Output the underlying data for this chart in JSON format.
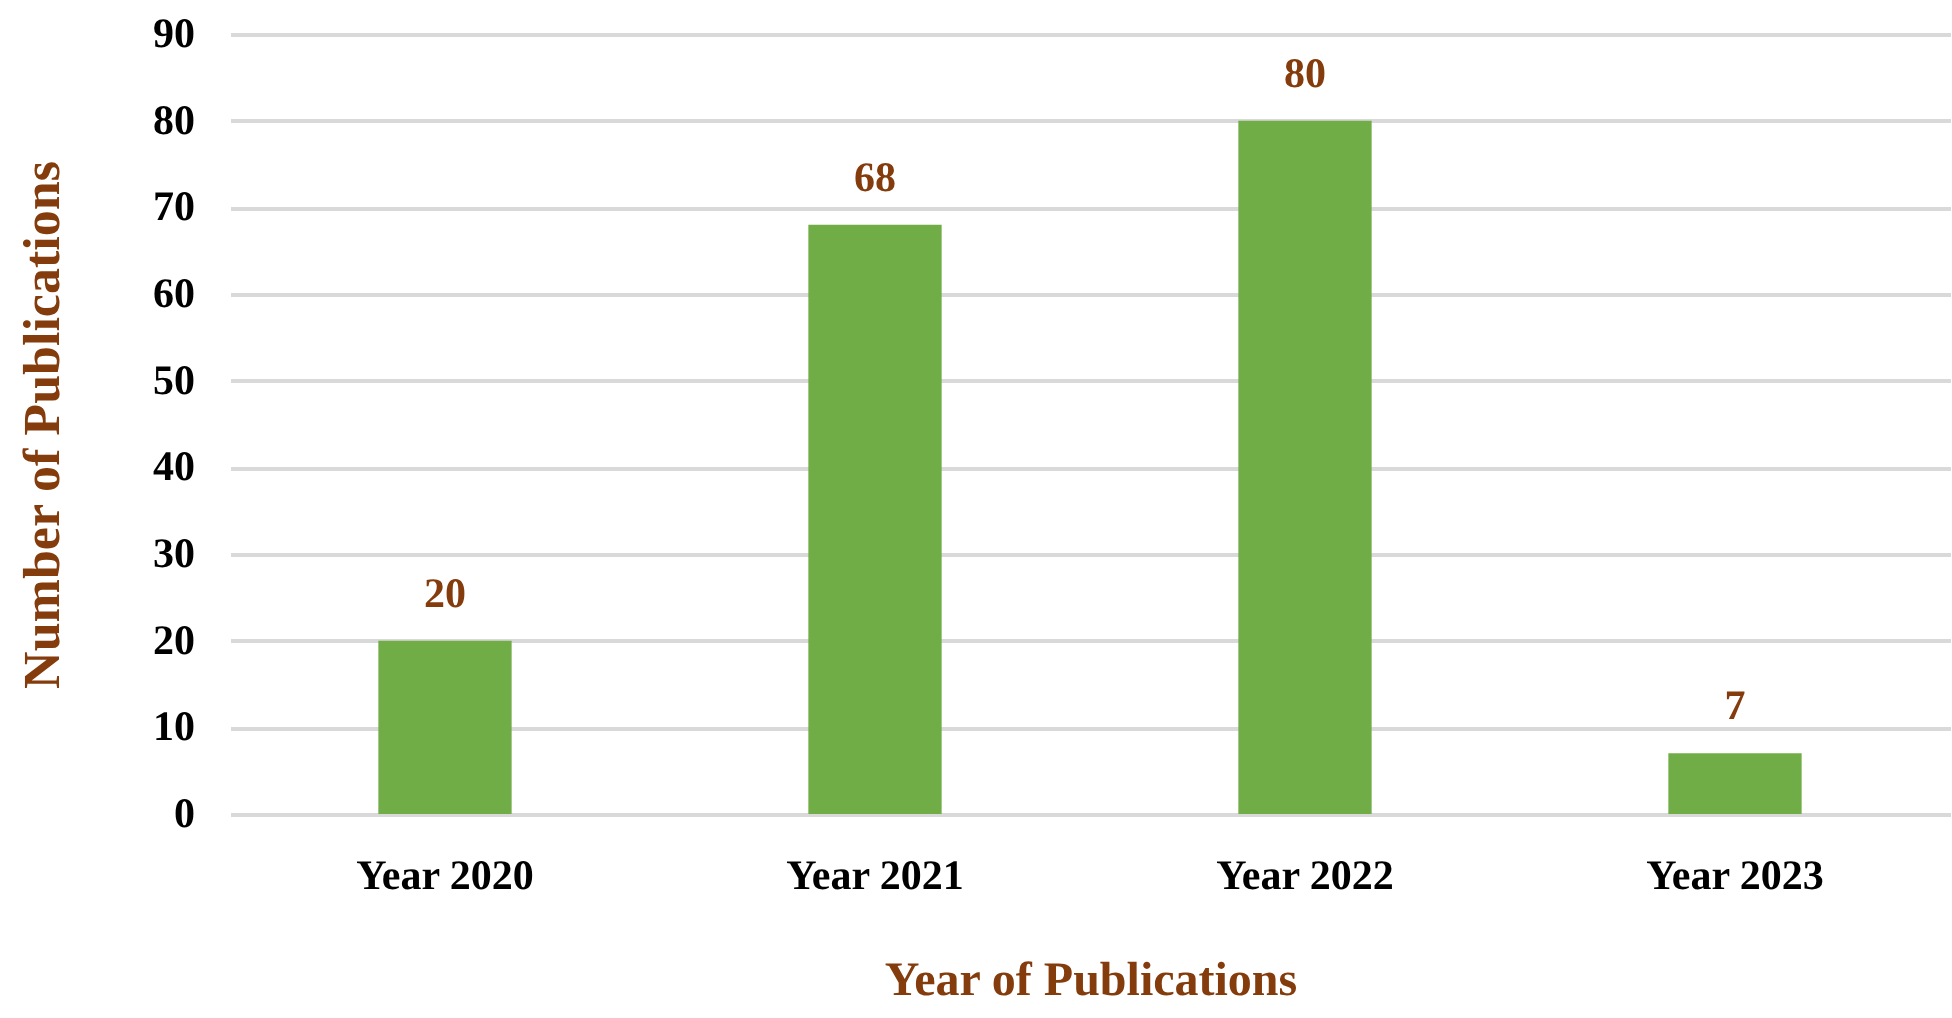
{
  "chart_data": {
    "type": "bar",
    "xlabel": "Year of Publications",
    "ylabel": "Number of Publications",
    "categories": [
      "Year 2020",
      "Year 2021",
      "Year 2022",
      "Year 2023"
    ],
    "values": [
      20,
      68,
      80,
      7
    ],
    "color": "#70ad47",
    "ylim": [
      0,
      90
    ],
    "yticks": [
      0,
      10,
      20,
      30,
      40,
      50,
      60,
      70,
      80,
      90
    ],
    "grid": "y",
    "data_labels": true
  }
}
